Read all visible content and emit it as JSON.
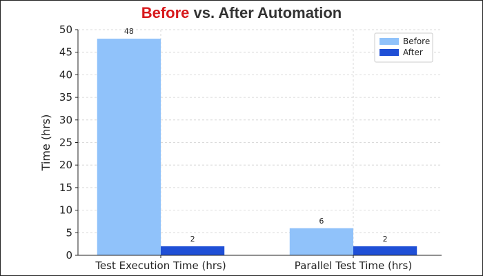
{
  "title": {
    "highlight": "Before",
    "rest": " vs. After Automation",
    "highlight_color": "#d7191c",
    "rest_color": "#333333"
  },
  "chart_data": {
    "type": "bar",
    "title": "Before vs. After Automation",
    "categories": [
      "Test Execution Time (hrs)",
      "Parallel Test Time (hrs)"
    ],
    "series": [
      {
        "name": "Before",
        "values": [
          48,
          6
        ],
        "color": "#90c2fa"
      },
      {
        "name": "After",
        "values": [
          2,
          2
        ],
        "color": "#1f4fd6"
      }
    ],
    "xlabel": "",
    "ylabel": "Time (hrs)",
    "ylim": [
      0,
      50
    ],
    "yticks": [
      0,
      5,
      10,
      15,
      20,
      25,
      30,
      35,
      40,
      45,
      50
    ],
    "grid": true,
    "legend_position": "top-right",
    "data_labels": true
  }
}
